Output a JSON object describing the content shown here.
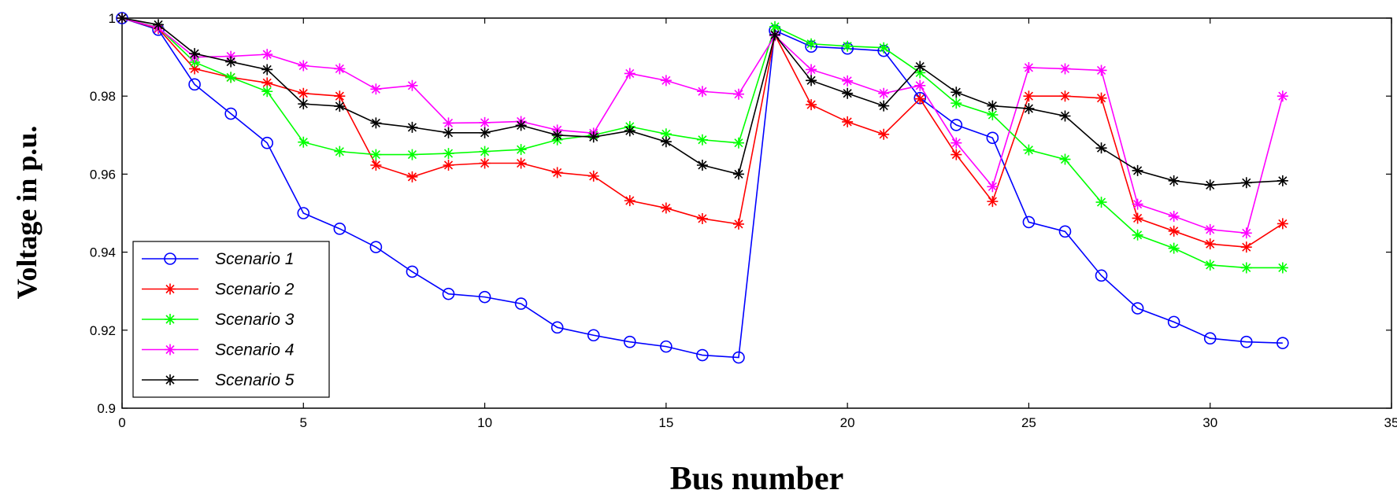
{
  "chart_data": {
    "type": "line",
    "title": "",
    "xlabel": "Bus number",
    "ylabel": "Voltage in p.u.",
    "xlim": [
      0,
      35
    ],
    "ylim": [
      0.9,
      1.0
    ],
    "xticks": [
      0,
      5,
      10,
      15,
      20,
      25,
      30,
      35
    ],
    "yticks": [
      0.9,
      0.92,
      0.94,
      0.96,
      0.98,
      1
    ],
    "xtick_labels": [
      "0",
      "5",
      "10",
      "15",
      "20",
      "25",
      "30",
      "35"
    ],
    "ytick_labels": [
      "0.9",
      "0.92",
      "0.94",
      "0.96",
      "0.98",
      "1"
    ],
    "grid": false,
    "legend_position": "bottom-left",
    "x": [
      0,
      1,
      2,
      3,
      4,
      5,
      6,
      7,
      8,
      9,
      10,
      11,
      12,
      13,
      14,
      15,
      16,
      17,
      18,
      19,
      20,
      21,
      22,
      23,
      24,
      25,
      26,
      27,
      28,
      29,
      30,
      31,
      32
    ],
    "series": [
      {
        "name": "Scenario 1",
        "color": "#0000ff",
        "marker": "circle",
        "values": [
          1.0,
          0.997,
          0.983,
          0.9755,
          0.968,
          0.95,
          0.946,
          0.9413,
          0.935,
          0.9293,
          0.9285,
          0.9268,
          0.9207,
          0.9187,
          0.917,
          0.9158,
          0.9136,
          0.913,
          0.9968,
          0.9927,
          0.9922,
          0.9916,
          0.9795,
          0.9726,
          0.9693,
          0.9477,
          0.9453,
          0.934,
          0.9256,
          0.9221,
          0.9179,
          0.917,
          0.9167
        ]
      },
      {
        "name": "Scenario 2",
        "color": "#ff0000",
        "marker": "star",
        "values": [
          1.0,
          0.9973,
          0.987,
          0.9848,
          0.9834,
          0.9807,
          0.98,
          0.9623,
          0.9593,
          0.9623,
          0.9628,
          0.9628,
          0.9604,
          0.9595,
          0.9532,
          0.9513,
          0.9486,
          0.9472,
          0.9957,
          0.9778,
          0.9734,
          0.9702,
          0.9793,
          0.965,
          0.953,
          0.98,
          0.98,
          0.9795,
          0.9487,
          0.9454,
          0.9421,
          0.9413,
          0.9473
        ]
      },
      {
        "name": "Scenario 3",
        "color": "#00ff00",
        "marker": "star",
        "values": [
          1.0,
          0.9976,
          0.9887,
          0.9848,
          0.9812,
          0.9682,
          0.9658,
          0.965,
          0.965,
          0.9653,
          0.9658,
          0.9663,
          0.9688,
          0.97,
          0.9722,
          0.9703,
          0.9688,
          0.968,
          0.9978,
          0.9934,
          0.9928,
          0.9924,
          0.986,
          0.9782,
          0.9752,
          0.9662,
          0.9638,
          0.9528,
          0.9444,
          0.941,
          0.9367,
          0.936,
          0.936
        ]
      },
      {
        "name": "Scenario 4",
        "color": "#ff00ff",
        "marker": "star",
        "values": [
          1.0,
          0.9975,
          0.99,
          0.9902,
          0.9907,
          0.9878,
          0.987,
          0.9818,
          0.9827,
          0.9731,
          0.9732,
          0.9735,
          0.9713,
          0.9705,
          0.9858,
          0.984,
          0.9812,
          0.9805,
          0.9955,
          0.9868,
          0.9839,
          0.9807,
          0.9827,
          0.968,
          0.9568,
          0.9873,
          0.987,
          0.9866,
          0.9523,
          0.9492,
          0.9458,
          0.9449,
          0.98
        ]
      },
      {
        "name": "Scenario 5",
        "color": "#000000",
        "marker": "star",
        "values": [
          1.0,
          0.9983,
          0.9909,
          0.9888,
          0.9868,
          0.978,
          0.9774,
          0.9731,
          0.972,
          0.9706,
          0.9706,
          0.9725,
          0.97,
          0.9695,
          0.9711,
          0.9683,
          0.9623,
          0.96,
          0.9957,
          0.984,
          0.9807,
          0.9775,
          0.9876,
          0.981,
          0.9775,
          0.9768,
          0.9749,
          0.9667,
          0.9609,
          0.9583,
          0.9572,
          0.9578,
          0.9583
        ]
      }
    ]
  }
}
